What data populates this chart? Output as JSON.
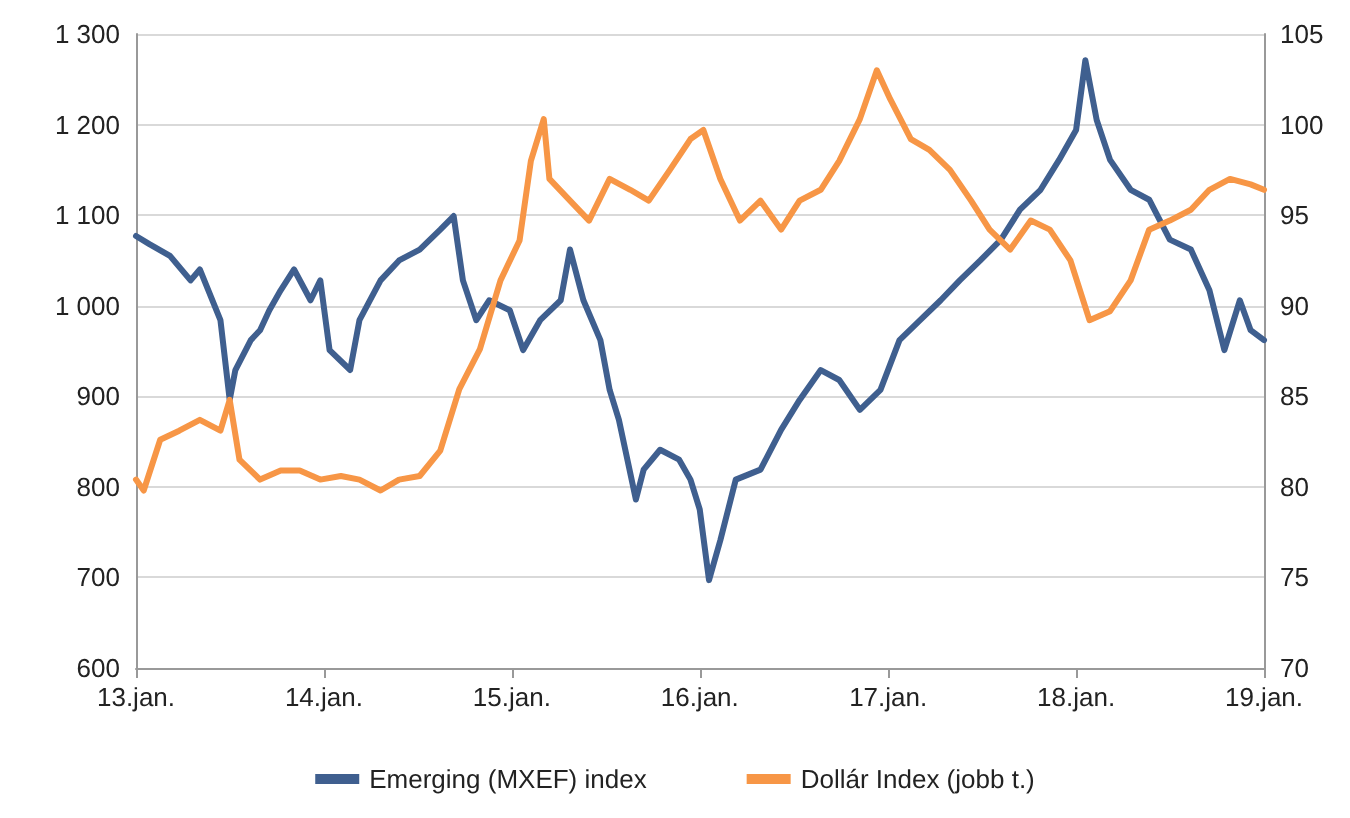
{
  "chart_data": {
    "type": "line",
    "xlim": [
      "2013-01-01",
      "2019-01-01"
    ],
    "xticks": [
      {
        "value": "2013-01-01",
        "label": "13.jan."
      },
      {
        "value": "2014-01-01",
        "label": "14.jan."
      },
      {
        "value": "2015-01-01",
        "label": "15.jan."
      },
      {
        "value": "2016-01-01",
        "label": "16.jan."
      },
      {
        "value": "2017-01-01",
        "label": "17.jan."
      },
      {
        "value": "2018-01-01",
        "label": "18.jan."
      },
      {
        "value": "2019-01-01",
        "label": "19.jan."
      }
    ],
    "ylim": [
      600,
      1300
    ],
    "yticks": [
      600,
      700,
      800,
      900,
      {
        "value": 1000,
        "label": "1 000"
      },
      {
        "value": 1100,
        "label": "1 100"
      },
      {
        "value": 1200,
        "label": "1 200"
      },
      {
        "value": 1300,
        "label": "1 300"
      }
    ],
    "y2lim": [
      70,
      105
    ],
    "y2ticks": [
      70,
      75,
      80,
      85,
      90,
      95,
      100,
      105
    ],
    "grid": "y",
    "legend": "bottom",
    "marker": "none",
    "line_style": "solid",
    "series": [
      {
        "name": "Emerging (MXEF) index",
        "color": "#3f5f8f",
        "x": [
          "2013-01-01",
          "2013-01-27",
          "2013-03-08",
          "2013-04-17",
          "2013-05-05",
          "2013-06-14",
          "2013-07-02",
          "2013-07-13",
          "2013-08-12",
          "2013-08-30",
          "2013-09-17",
          "2013-10-09",
          "2013-11-04",
          "2013-12-06",
          "2013-12-25",
          "2014-01-12",
          "2014-02-21",
          "2014-03-11",
          "2014-04-21",
          "2014-05-27",
          "2014-07-06",
          "2014-08-15",
          "2014-09-10",
          "2014-09-28",
          "2014-10-24",
          "2014-11-18",
          "2014-12-28",
          "2015-01-23",
          "2015-02-25",
          "2015-04-06",
          "2015-04-24",
          "2015-05-20",
          "2015-06-22",
          "2015-07-10",
          "2015-07-28",
          "2015-08-30",
          "2015-09-14",
          "2015-10-16",
          "2015-11-22",
          "2015-12-14",
          "2016-01-01",
          "2016-01-19",
          "2016-02-10",
          "2016-03-11",
          "2016-04-28",
          "2016-06-07",
          "2016-07-13",
          "2016-08-23",
          "2016-09-28",
          "2016-11-07",
          "2016-12-17",
          "2017-01-23",
          "2017-03-04",
          "2017-04-13",
          "2017-05-20",
          "2017-06-29",
          "2017-08-08",
          "2017-09-14",
          "2017-10-24",
          "2017-11-29",
          "2018-01-01",
          "2018-01-19",
          "2018-02-10",
          "2018-03-08",
          "2018-04-17",
          "2018-05-23",
          "2018-07-02",
          "2018-08-12",
          "2018-09-17",
          "2018-10-16",
          "2018-11-15",
          "2018-12-06",
          "2019-01-01"
        ],
        "values": [
          1077,
          1068,
          1055,
          1028,
          1040,
          984,
          896,
          929,
          962,
          973,
          995,
          1017,
          1040,
          1006,
          1028,
          951,
          929,
          984,
          1028,
          1050,
          1062,
          1084,
          1099,
          1028,
          984,
          1006,
          995,
          951,
          984,
          1006,
          1062,
          1006,
          962,
          907,
          874,
          786,
          819,
          841,
          830,
          808,
          775,
          697,
          741,
          808,
          819,
          863,
          896,
          929,
          918,
          885,
          907,
          962,
          984,
          1006,
          1028,
          1050,
          1073,
          1106,
          1128,
          1161,
          1194,
          1271,
          1205,
          1161,
          1128,
          1117,
          1073,
          1062,
          1017,
          951,
          1006,
          973,
          962
        ]
      },
      {
        "name": "Dollár Index (jobb t.)",
        "color": "#f79646",
        "axis": "y2",
        "x": [
          "2013-01-01",
          "2013-01-16",
          "2013-02-17",
          "2013-03-26",
          "2013-05-05",
          "2013-06-14",
          "2013-07-02",
          "2013-07-21",
          "2013-08-30",
          "2013-10-09",
          "2013-11-15",
          "2013-12-25",
          "2014-02-03",
          "2014-03-11",
          "2014-04-21",
          "2014-05-27",
          "2014-07-06",
          "2014-08-15",
          "2014-09-21",
          "2014-10-31",
          "2014-12-10",
          "2015-01-16",
          "2015-02-07",
          "2015-03-04",
          "2015-03-15",
          "2015-04-24",
          "2015-05-31",
          "2015-07-10",
          "2015-08-19",
          "2015-09-24",
          "2015-11-04",
          "2015-12-14",
          "2016-01-08",
          "2016-02-10",
          "2016-03-19",
          "2016-04-28",
          "2016-06-07",
          "2016-07-13",
          "2016-08-23",
          "2016-09-28",
          "2016-11-07",
          "2016-12-10",
          "2017-01-05",
          "2017-02-14",
          "2017-03-22",
          "2017-05-01",
          "2017-06-11",
          "2017-07-17",
          "2017-08-26",
          "2017-10-05",
          "2017-11-11",
          "2017-12-21",
          "2018-01-27",
          "2018-03-08",
          "2018-04-17",
          "2018-05-23",
          "2018-07-02",
          "2018-08-12",
          "2018-09-17",
          "2018-10-27",
          "2018-12-06",
          "2019-01-01"
        ],
        "values": [
          80.4,
          79.8,
          82.6,
          83.1,
          83.7,
          83.1,
          84.8,
          81.5,
          80.4,
          80.9,
          80.9,
          80.4,
          80.6,
          80.4,
          79.8,
          80.4,
          80.6,
          82.0,
          85.4,
          87.6,
          91.4,
          93.6,
          98.0,
          100.3,
          97.0,
          95.8,
          94.7,
          97.0,
          96.4,
          95.8,
          97.5,
          99.2,
          99.7,
          97.0,
          94.7,
          95.8,
          94.2,
          95.8,
          96.4,
          98.0,
          100.3,
          103.0,
          101.4,
          99.2,
          98.6,
          97.5,
          95.8,
          94.2,
          93.1,
          94.7,
          94.2,
          92.5,
          89.2,
          89.7,
          91.4,
          94.2,
          94.7,
          95.3,
          96.4,
          97.0,
          96.7,
          96.4
        ]
      }
    ]
  }
}
